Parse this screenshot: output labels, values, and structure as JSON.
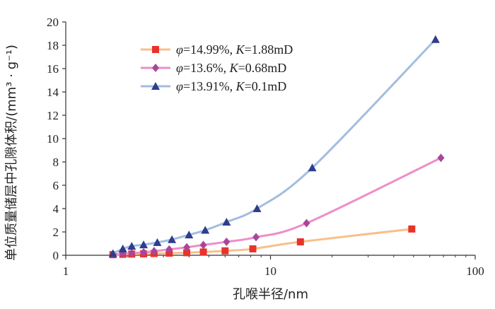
{
  "chart_data": {
    "type": "line",
    "xlabel": "孔喉半径/nm",
    "ylabel": "单位质量储层中孔隙体积/(mm³ · g⁻¹)",
    "xscale": "log",
    "xlim": [
      1,
      100
    ],
    "ylim": [
      0,
      20
    ],
    "x_ticks": [
      "1",
      "10",
      "100"
    ],
    "y_ticks": [
      "0",
      "2",
      "4",
      "6",
      "8",
      "10",
      "12",
      "14",
      "16",
      "18",
      "20"
    ],
    "grid": false,
    "legend_position": "upper-left",
    "series": [
      {
        "name": "φ=14.99%, K=1.88mD",
        "legend_phi": "φ",
        "legend_phi_value": "=14.99%, ",
        "legend_k": "K",
        "legend_k_value": "=1.88mD",
        "line_color": "#f9bf8a",
        "marker_color": "#e8332a",
        "marker": "square",
        "x": [
          1.7,
          1.9,
          2.1,
          2.4,
          2.7,
          3.2,
          3.9,
          4.7,
          6.0,
          8.2,
          14.0,
          49.0
        ],
        "y": [
          0.05,
          0.08,
          0.1,
          0.12,
          0.15,
          0.18,
          0.22,
          0.28,
          0.38,
          0.55,
          1.15,
          2.25
        ]
      },
      {
        "name": "φ=13.6%, K=0.68mD",
        "legend_phi": "φ",
        "legend_phi_value": "=13.6%, ",
        "legend_k": "K",
        "legend_k_value": "=0.68mD",
        "line_color": "#ec8fc8",
        "marker_color": "#a8479a",
        "marker": "diamond",
        "x": [
          1.7,
          1.9,
          2.1,
          2.4,
          2.7,
          3.2,
          3.9,
          4.7,
          6.1,
          8.5,
          15.0,
          68.0
        ],
        "y": [
          0.08,
          0.12,
          0.18,
          0.25,
          0.35,
          0.5,
          0.68,
          0.88,
          1.15,
          1.55,
          2.75,
          8.35
        ]
      },
      {
        "name": "φ=13.91%, K=0.1mD",
        "legend_phi": "φ",
        "legend_phi_value": "=13.91%, ",
        "legend_k": "K",
        "legend_k_value": "=0.1mD",
        "line_color": "#a3bde0",
        "marker_color": "#2e3d8c",
        "marker": "triangle",
        "x": [
          1.7,
          1.9,
          2.1,
          2.4,
          2.8,
          3.3,
          4.0,
          4.8,
          6.1,
          8.6,
          16.0,
          64.0
        ],
        "y": [
          0.15,
          0.55,
          0.78,
          0.9,
          1.1,
          1.35,
          1.75,
          2.15,
          2.85,
          4.0,
          7.5,
          18.5
        ]
      }
    ]
  }
}
